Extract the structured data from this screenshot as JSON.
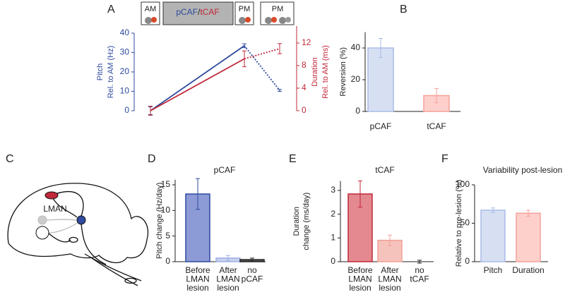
{
  "diagram": {
    "panel": "C",
    "label": "LMAN"
  },
  "chart_data": [
    {
      "type": "line",
      "panel": "A",
      "timeline": [
        "AM",
        "pCAF",
        "/",
        "tCAF",
        "PM",
        "PM"
      ],
      "categories": [
        null,
        null,
        null
      ],
      "ylabel": [
        "Pitch",
        "Rel. to AM (Hz)"
      ],
      "y2label": [
        "Duration",
        "Rel. to AM (ms)"
      ],
      "ylim": [
        0,
        40
      ],
      "yticks": [
        0,
        10,
        20,
        30,
        40
      ],
      "y2lim": [
        0,
        15
      ],
      "y2ticks": [
        0,
        4,
        8,
        12
      ],
      "series": [
        {
          "name": "Pitch",
          "color": "#2f4a9e",
          "values": [
            0,
            33.5,
            10.5
          ],
          "errors": [
            2,
            1,
            0.5
          ],
          "segment_styles": [
            "solid",
            "dotted"
          ]
        },
        {
          "name": "Duration",
          "color": "#c0283a",
          "axis": "y2",
          "values": [
            0,
            9.2,
            11
          ],
          "errors": [
            0.8,
            1.4,
            0.9
          ],
          "segment_styles": [
            "solid",
            "dotted"
          ]
        }
      ]
    },
    {
      "type": "bar",
      "panel": "B",
      "ylabel": [
        "Reversion (%)"
      ],
      "categories": [
        "pCAF",
        "tCAF"
      ],
      "values": [
        40,
        10
      ],
      "errors": [
        6,
        4.5
      ],
      "colors": [
        "#d7e0f3",
        "#fdd0cc"
      ],
      "edge_colors": [
        "#a9bce6",
        "#f5a19a"
      ],
      "ylim": [
        0,
        50
      ],
      "yticks": [
        0,
        20,
        40
      ]
    },
    {
      "type": "bar",
      "panel": "D",
      "title": "pCAF",
      "ylabel": [
        "Pitch change (Hz/day)"
      ],
      "categories": [
        "Before LMAN lesion",
        "After LMAN lesion",
        "no pCAF"
      ],
      "values": [
        13.2,
        0.7,
        0.4
      ],
      "errors": [
        3,
        0.5,
        0.3
      ],
      "colors": [
        "#8c9bd6",
        "#c9d1ef",
        "#555555"
      ],
      "edge_colors": [
        "#2f4a9e",
        "#9fb0e3",
        "#222222"
      ],
      "ylim": [
        0,
        16
      ],
      "yticks": [
        0,
        5,
        10,
        15
      ]
    },
    {
      "type": "bar",
      "panel": "E",
      "title": "tCAF",
      "ylabel": [
        "Duration",
        "change (ms/day)"
      ],
      "categories": [
        "Before LMAN lesion",
        "After LMAN lesion",
        "no tCAF"
      ],
      "values": [
        2.85,
        0.9,
        0
      ],
      "errors": [
        0.55,
        0.22,
        0.06
      ],
      "colors": [
        "#e4898f",
        "#f6c3bc",
        "#555555"
      ],
      "edge_colors": [
        "#c0283a",
        "#f0a097",
        "#222222"
      ],
      "ylim": [
        0,
        3.4
      ],
      "yticks": [
        0,
        1,
        2,
        3
      ]
    },
    {
      "type": "bar",
      "panel": "F",
      "title": "Variability post-lesion",
      "ylabel": [
        "Relative to pre-lesion (%)"
      ],
      "categories": [
        "Pitch",
        "Duration"
      ],
      "values": [
        67,
        63
      ],
      "errors": [
        3,
        4
      ],
      "colors": [
        "#d7e0f3",
        "#fdd0cc"
      ],
      "edge_colors": [
        "#a9bce6",
        "#f5a19a"
      ],
      "ylim": [
        0,
        100
      ],
      "yticks": [
        0,
        50,
        100
      ]
    }
  ]
}
